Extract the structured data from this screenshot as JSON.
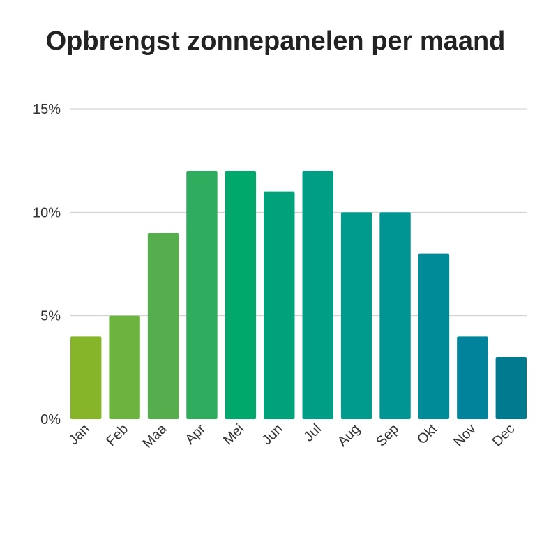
{
  "chart_data": {
    "type": "bar",
    "title": "Opbrengst zonnepanelen per maand",
    "xlabel": "",
    "ylabel": "",
    "categories": [
      "Jan",
      "Feb",
      "Maa",
      "Apr",
      "Mei",
      "Jun",
      "Jul",
      "Aug",
      "Sep",
      "Okt",
      "Nov",
      "Dec"
    ],
    "values": [
      4,
      5,
      9,
      12,
      12,
      11,
      12,
      10,
      10,
      8,
      4,
      3
    ],
    "unit": "%",
    "ylim": [
      0,
      15
    ],
    "yticks": [
      0,
      5,
      10,
      15
    ],
    "ytick_labels": [
      "0%",
      "5%",
      "10%",
      "15%"
    ],
    "grid": true,
    "legend": "none",
    "colors": [
      "#86b52a",
      "#6db33f",
      "#55ad4d",
      "#2fac5e",
      "#00a86b",
      "#00a27a",
      "#009e85",
      "#009b8c",
      "#009593",
      "#008b99",
      "#00839b",
      "#007a8f"
    ],
    "grid_color": "#cccccc"
  }
}
